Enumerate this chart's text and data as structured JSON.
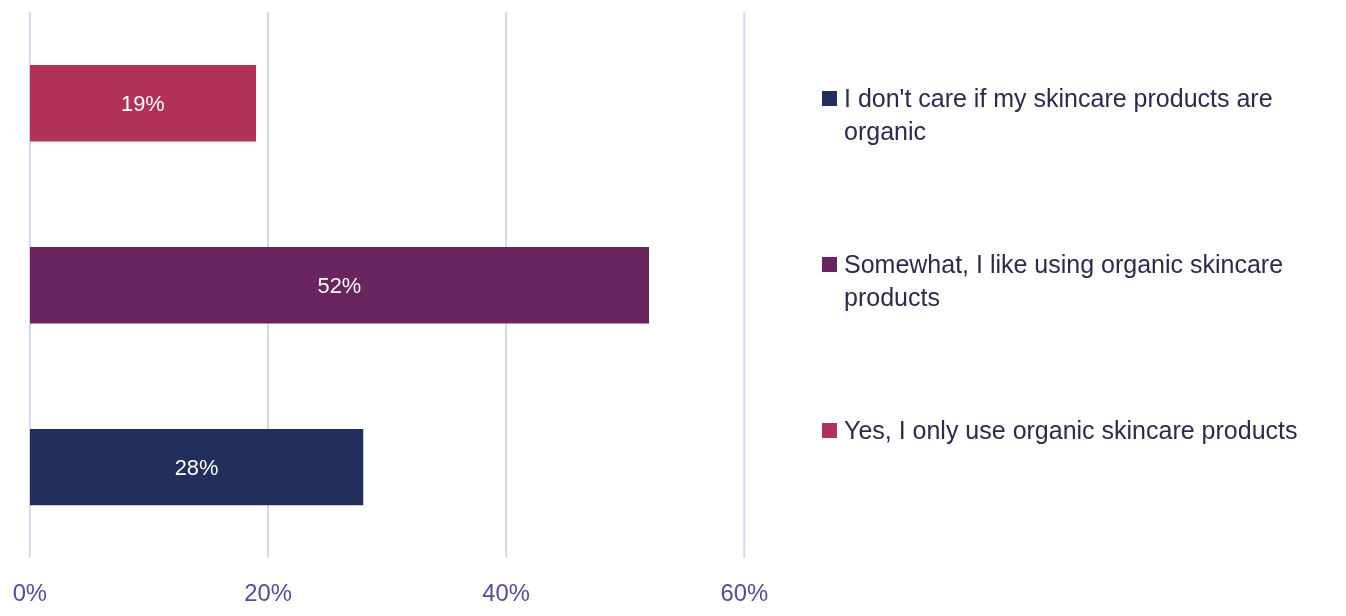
{
  "chart_data": {
    "type": "bar",
    "orientation": "horizontal",
    "stacked": true,
    "categories": [
      null,
      null,
      null
    ],
    "series": [
      {
        "name": "I don't care if my skincare products are organic",
        "color": "#222e5c",
        "values": [
          null,
          null,
          28
        ],
        "value_labels": [
          null,
          null,
          "28%"
        ]
      },
      {
        "name": "Somewhat, I like using organic skincare products",
        "color": "#6a2561",
        "values": [
          null,
          52,
          null
        ],
        "value_labels": [
          null,
          "52%",
          null
        ]
      },
      {
        "name": "Yes, I only use organic skincare products",
        "color": "#b03257",
        "values": [
          19,
          null,
          null
        ],
        "value_labels": [
          "19%",
          null,
          null
        ]
      }
    ],
    "xlim": [
      0,
      60
    ],
    "xticks": [
      {
        "value": 0,
        "label": "0%"
      },
      {
        "value": 20,
        "label": "20%"
      },
      {
        "value": 40,
        "label": "40%"
      },
      {
        "value": 60,
        "label": "60%"
      }
    ],
    "grid": "x",
    "legend": "right"
  }
}
